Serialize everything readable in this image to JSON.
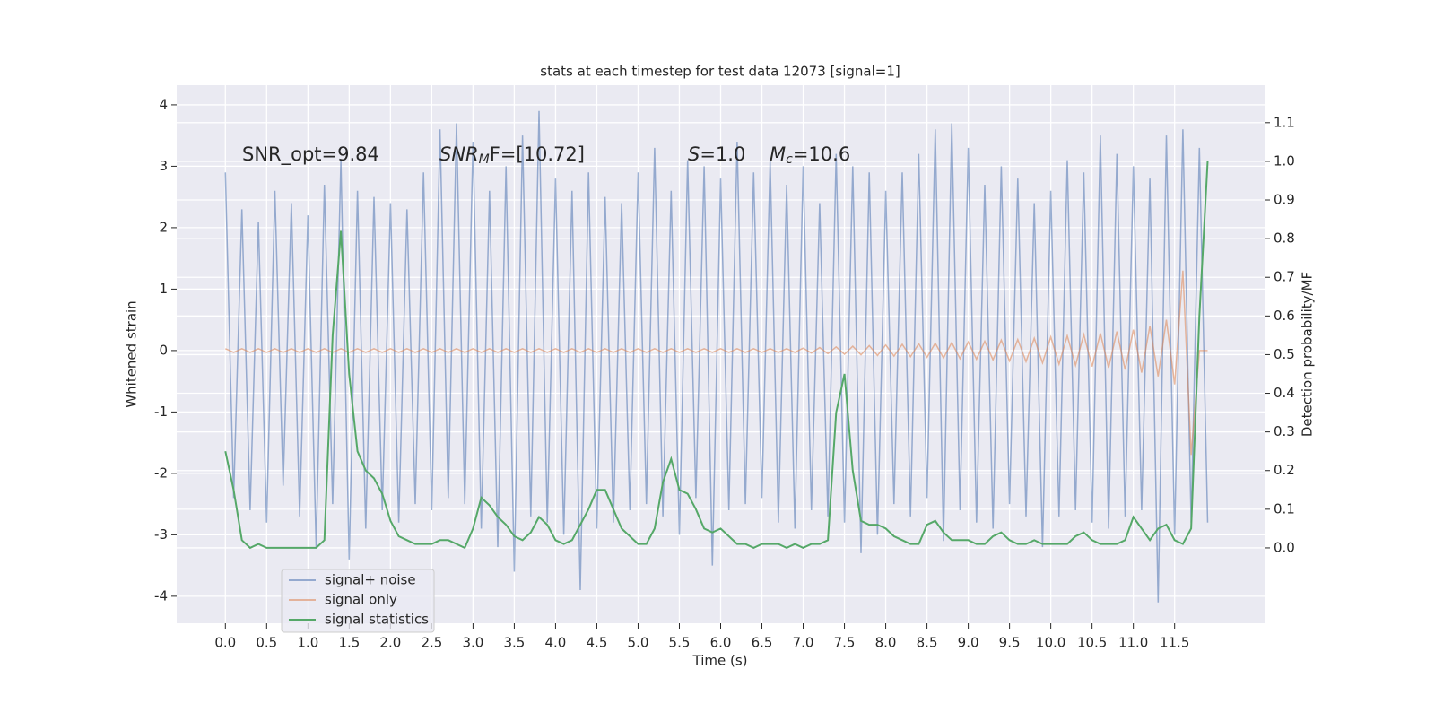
{
  "chart_data": {
    "type": "line",
    "title": "stats at each timestep for test data 12073 [signal=1]",
    "xlabel": "Time (s)",
    "ylabel": "Whitened strain",
    "y2label": "Detection probability/MF",
    "annotations": [
      [
        {
          "text": "SNR_opt=9.84"
        }
      ],
      [
        {
          "text": "SNR",
          "italic": true
        },
        {
          "text": "M",
          "italic": true,
          "sub": true
        },
        {
          "text": "F=[10.72]"
        }
      ],
      [
        {
          "text": "S",
          "italic": true
        },
        {
          "text": "=1.0"
        }
      ],
      [
        {
          "text": "M",
          "italic": true
        },
        {
          "text": "c",
          "italic": true,
          "sub": true
        },
        {
          "text": "=10.6"
        }
      ]
    ],
    "x": [
      0,
      0.1,
      0.2,
      0.3,
      0.4,
      0.5,
      0.6,
      0.7,
      0.8,
      0.9,
      1,
      1.1,
      1.2,
      1.3,
      1.4,
      1.5,
      1.6,
      1.7,
      1.8,
      1.9,
      2,
      2.1,
      2.2,
      2.3,
      2.4,
      2.5,
      2.6,
      2.7,
      2.8,
      2.9,
      3,
      3.1,
      3.2,
      3.3,
      3.4,
      3.5,
      3.6,
      3.7,
      3.8,
      3.9,
      4,
      4.1,
      4.2,
      4.3,
      4.4,
      4.5,
      4.6,
      4.7,
      4.8,
      4.9,
      5,
      5.1,
      5.2,
      5.3,
      5.4,
      5.5,
      5.6,
      5.7,
      5.8,
      5.9,
      6,
      6.1,
      6.2,
      6.3,
      6.4,
      6.5,
      6.6,
      6.7,
      6.8,
      6.9,
      7,
      7.1,
      7.2,
      7.3,
      7.4,
      7.5,
      7.6,
      7.7,
      7.8,
      7.9,
      8,
      8.1,
      8.2,
      8.3,
      8.4,
      8.5,
      8.6,
      8.7,
      8.8,
      8.9,
      9,
      9.1,
      9.2,
      9.3,
      9.4,
      9.5,
      9.6,
      9.7,
      9.8,
      9.9,
      10,
      10.1,
      10.2,
      10.3,
      10.4,
      10.5,
      10.6,
      10.7,
      10.8,
      10.9,
      11,
      11.1,
      11.2,
      11.3,
      11.4,
      11.5,
      11.6,
      11.7,
      11.8,
      11.9
    ],
    "series": [
      {
        "name": "signal+ noise",
        "color": "#4c72b0",
        "values": [
          2.9,
          -2.4,
          2.3,
          -2.6,
          2.1,
          -2.8,
          2.6,
          -2.2,
          2.4,
          -2.7,
          2.2,
          -3.2,
          2.7,
          -2.5,
          3.1,
          -3.4,
          2.6,
          -2.9,
          2.5,
          -2.6,
          2.4,
          -2.8,
          2.3,
          -2.5,
          2.9,
          -2.6,
          3.6,
          -2.4,
          3.7,
          -2.5,
          3.4,
          -2.9,
          2.6,
          -3.2,
          3.0,
          -3.6,
          3.5,
          -2.7,
          3.9,
          -2.8,
          2.8,
          -3.0,
          2.6,
          -3.9,
          2.9,
          -2.9,
          2.5,
          -2.8,
          2.4,
          -2.6,
          2.9,
          -2.5,
          3.3,
          -2.7,
          2.6,
          -3.0,
          3.1,
          -2.4,
          3.0,
          -3.5,
          2.8,
          -2.6,
          3.4,
          -2.5,
          2.9,
          -2.4,
          3.1,
          -2.8,
          2.7,
          -2.9,
          3.0,
          -2.6,
          2.4,
          -2.7,
          3.2,
          -2.8,
          3.0,
          -3.3,
          2.9,
          -3.0,
          2.6,
          -2.5,
          2.9,
          -2.7,
          3.2,
          -2.4,
          3.6,
          -3.1,
          3.7,
          -2.6,
          3.3,
          -2.8,
          2.7,
          -2.9,
          3.0,
          -2.5,
          2.8,
          -2.7,
          2.4,
          -3.2,
          2.6,
          -2.7,
          3.1,
          -2.6,
          2.9,
          -2.8,
          3.5,
          -2.9,
          3.2,
          -2.7,
          3.0,
          -2.6,
          2.8,
          -4.1,
          3.5,
          -3.0,
          3.6,
          -2.8,
          3.3,
          -2.8
        ]
      },
      {
        "name": "signal only",
        "color": "#dd8452",
        "values": [
          0.03,
          -0.03,
          0.03,
          -0.03,
          0.03,
          -0.03,
          0.03,
          -0.03,
          0.03,
          -0.03,
          0.03,
          -0.03,
          0.03,
          -0.03,
          0.03,
          -0.03,
          0.03,
          -0.03,
          0.03,
          -0.03,
          0.03,
          -0.03,
          0.03,
          -0.03,
          0.03,
          -0.03,
          0.03,
          -0.03,
          0.03,
          -0.03,
          0.03,
          -0.03,
          0.03,
          -0.03,
          0.03,
          -0.03,
          0.03,
          -0.03,
          0.03,
          -0.03,
          0.03,
          -0.03,
          0.03,
          -0.03,
          0.03,
          -0.03,
          0.03,
          -0.03,
          0.03,
          -0.03,
          0.03,
          -0.03,
          0.03,
          -0.03,
          0.03,
          -0.03,
          0.03,
          -0.03,
          0.03,
          -0.03,
          0.03,
          -0.03,
          0.03,
          -0.03,
          0.03,
          -0.03,
          0.03,
          -0.03,
          0.03,
          -0.03,
          0.04,
          -0.04,
          0.05,
          -0.05,
          0.06,
          -0.06,
          0.07,
          -0.07,
          0.08,
          -0.08,
          0.09,
          -0.09,
          0.1,
          -0.1,
          0.11,
          -0.11,
          0.12,
          -0.12,
          0.13,
          -0.13,
          0.14,
          -0.14,
          0.15,
          -0.15,
          0.17,
          -0.17,
          0.18,
          -0.18,
          0.2,
          -0.2,
          0.22,
          -0.22,
          0.24,
          -0.24,
          0.26,
          -0.26,
          0.28,
          -0.28,
          0.31,
          -0.31,
          0.34,
          -0.36,
          0.4,
          -0.42,
          0.5,
          -0.55,
          1.3,
          -1.7,
          0,
          0
        ]
      },
      {
        "name": "signal statistics",
        "color": "#55a868",
        "axis": "y2",
        "values": [
          0.25,
          0.15,
          0.02,
          0,
          0.01,
          0,
          0,
          0,
          0,
          0,
          0,
          0,
          0.02,
          0.55,
          0.82,
          0.45,
          0.25,
          0.2,
          0.18,
          0.14,
          0.07,
          0.03,
          0.02,
          0.01,
          0.01,
          0.01,
          0.02,
          0.02,
          0.01,
          0,
          0.05,
          0.13,
          0.11,
          0.08,
          0.06,
          0.03,
          0.02,
          0.04,
          0.08,
          0.06,
          0.02,
          0.01,
          0.02,
          0.06,
          0.1,
          0.15,
          0.15,
          0.1,
          0.05,
          0.03,
          0.01,
          0.01,
          0.05,
          0.17,
          0.23,
          0.15,
          0.14,
          0.1,
          0.05,
          0.04,
          0.05,
          0.03,
          0.01,
          0.01,
          0,
          0.01,
          0.01,
          0.01,
          0,
          0.01,
          0,
          0.01,
          0.01,
          0.02,
          0.35,
          0.45,
          0.2,
          0.07,
          0.06,
          0.06,
          0.05,
          0.03,
          0.02,
          0.01,
          0.01,
          0.06,
          0.07,
          0.04,
          0.02,
          0.02,
          0.02,
          0.01,
          0.01,
          0.03,
          0.04,
          0.02,
          0.01,
          0.01,
          0.02,
          0.01,
          0.01,
          0.01,
          0.01,
          0.03,
          0.04,
          0.02,
          0.01,
          0.01,
          0.01,
          0.02,
          0.08,
          0.05,
          0.02,
          0.05,
          0.06,
          0.02,
          0.01,
          0.05,
          0.6,
          1.0
        ]
      }
    ],
    "xlim": [
      -0.59,
      12.59
    ],
    "ylim": [
      -4.44,
      4.32
    ],
    "y2lim": [
      -0.195,
      1.197
    ],
    "xticks": [
      {
        "value": 0,
        "label": "0.0"
      },
      0.5,
      {
        "value": 1,
        "label": "1.0"
      },
      1.5,
      {
        "value": 2,
        "label": "2.0"
      },
      2.5,
      {
        "value": 3,
        "label": "3.0"
      },
      3.5,
      {
        "value": 4,
        "label": "4.0"
      },
      4.5,
      {
        "value": 5,
        "label": "5.0"
      },
      5.5,
      {
        "value": 6,
        "label": "6.0"
      },
      6.5,
      {
        "value": 7,
        "label": "7.0"
      },
      7.5,
      {
        "value": 8,
        "label": "8.0"
      },
      8.5,
      {
        "value": 9,
        "label": "9.0"
      },
      9.5,
      {
        "value": 10,
        "label": "10.0"
      },
      10.5,
      {
        "value": 11,
        "label": "11.0"
      },
      11.5
    ],
    "yticks": [
      -4,
      -3,
      -2,
      -1,
      0,
      1,
      2,
      3,
      4
    ],
    "y2ticks": [
      {
        "value": 0,
        "label": "0.0"
      },
      0.1,
      0.2,
      0.3,
      0.4,
      0.5,
      0.6,
      0.7,
      0.8,
      0.9,
      {
        "value": 1,
        "label": "1.0"
      },
      1.1
    ],
    "grid": true,
    "legend": "lower left"
  }
}
